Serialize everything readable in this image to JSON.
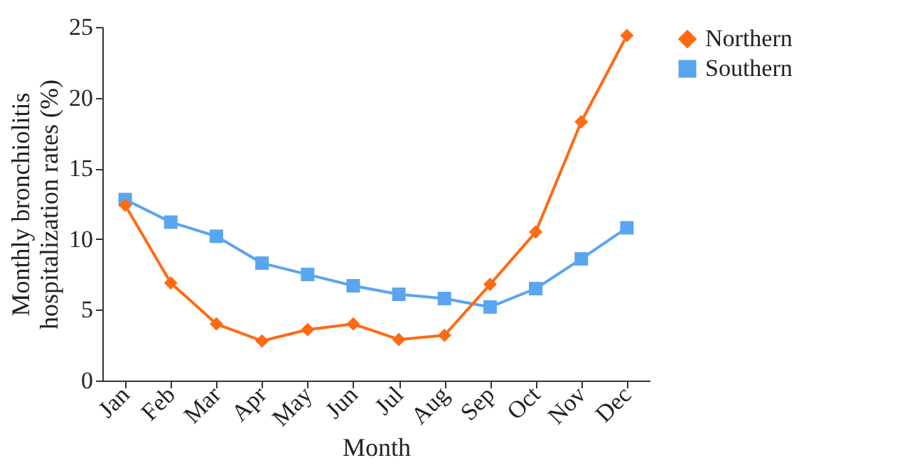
{
  "chart_data": {
    "type": "line",
    "xlabel": "Month",
    "ylabel": "Monthly bronchiolitis hospitalization rates (%)",
    "categories": [
      "Jan",
      "Feb",
      "Mar",
      "Apr",
      "May",
      "Jun",
      "Jul",
      "Aug",
      "Sep",
      "Oct",
      "Nov",
      "Dec"
    ],
    "series": [
      {
        "name": "Northern",
        "color": "#ff6a13",
        "marker": "diamond",
        "values": [
          12.4,
          6.9,
          4.0,
          2.8,
          3.6,
          4.0,
          2.9,
          3.2,
          6.8,
          10.5,
          18.3,
          24.4
        ]
      },
      {
        "name": "Southern",
        "color": "#5aa5f0",
        "marker": "square",
        "values": [
          12.8,
          11.2,
          10.2,
          8.3,
          7.5,
          6.7,
          6.1,
          5.8,
          5.2,
          6.5,
          8.6,
          10.8
        ]
      }
    ],
    "ylim": [
      0,
      25
    ],
    "yticks": [
      0,
      5,
      10,
      15,
      20,
      25
    ],
    "grid": false,
    "legend": "top right",
    "line_style": "solid"
  }
}
